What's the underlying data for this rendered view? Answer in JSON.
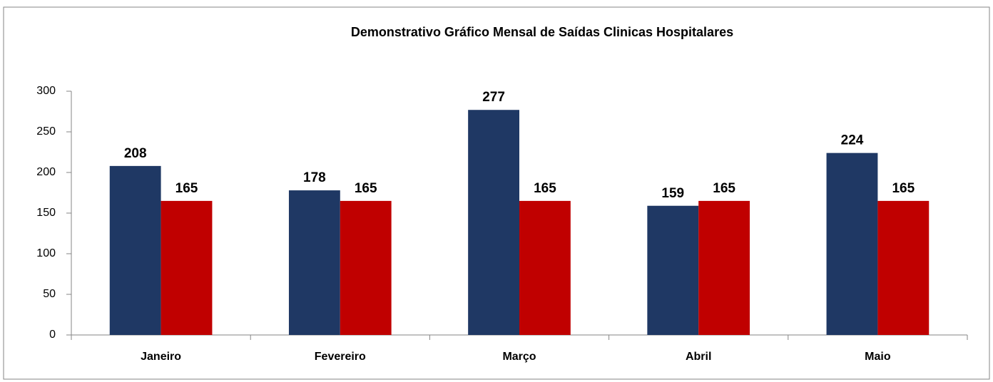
{
  "chart_data": {
    "type": "bar",
    "title": "Demonstrativo Gráfico Mensal de Saídas Clinicas Hospitalares",
    "categories": [
      "Janeiro",
      "Fevereiro",
      "Março",
      "Abril",
      "Maio"
    ],
    "series": [
      {
        "color": "#1f3864",
        "values": [
          208,
          178,
          277,
          159,
          224
        ]
      },
      {
        "color": "#c00000",
        "values": [
          165,
          165,
          165,
          165,
          165
        ]
      }
    ],
    "ylim": [
      0,
      300
    ],
    "yticks": [
      0,
      50,
      100,
      150,
      200,
      250,
      300
    ],
    "grid": false
  }
}
